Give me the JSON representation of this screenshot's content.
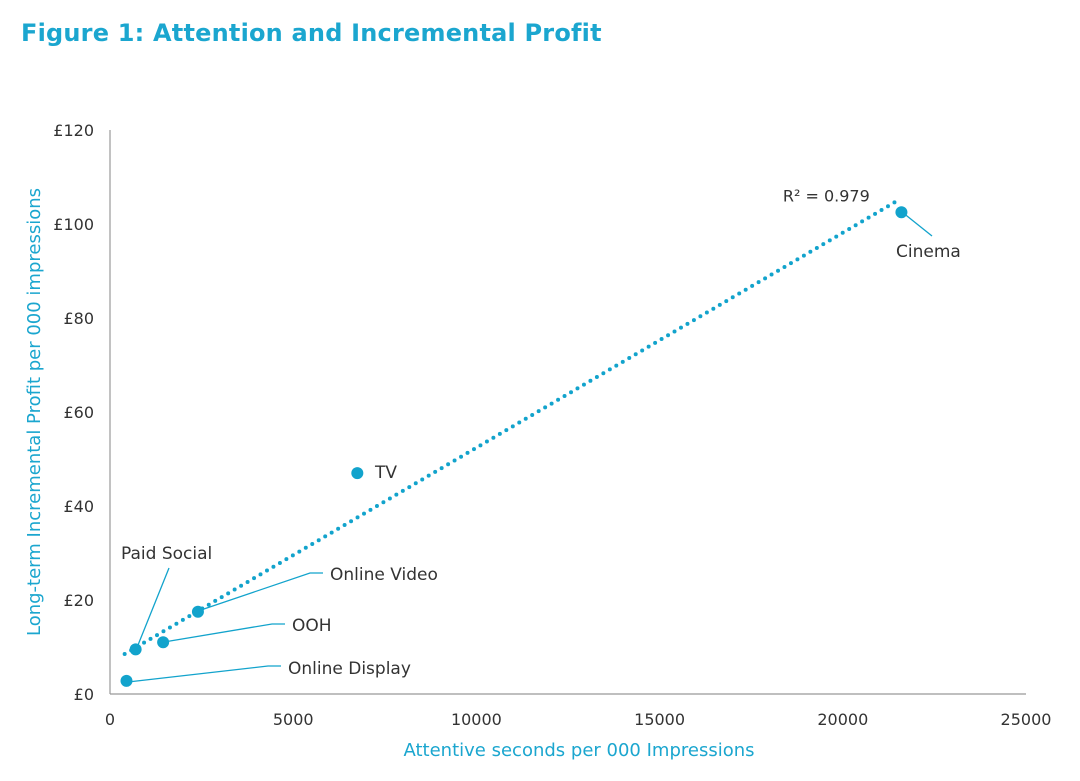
{
  "title": "Figure 1: Attention and Incremental Profit",
  "colors": {
    "title": "#1ba6cf",
    "point": "#12a3cc",
    "axis": "#999999",
    "text": "#333333"
  },
  "chart_data": {
    "type": "scatter",
    "title": "Figure 1: Attention and Incremental Profit",
    "xlabel": "Attentive seconds per 000 Impressions",
    "ylabel": "Long-term Incremental Profit per 000 impressions",
    "xlim": [
      0,
      25000
    ],
    "ylim": [
      0,
      120
    ],
    "x_ticks": [
      0,
      5000,
      10000,
      15000,
      20000,
      25000
    ],
    "x_tick_labels": [
      "0",
      "5000",
      "10000",
      "15000",
      "20000",
      "25000"
    ],
    "y_ticks": [
      0,
      20,
      40,
      60,
      80,
      100,
      120
    ],
    "y_tick_labels": [
      "£0",
      "£20",
      "£40",
      "£60",
      "£80",
      "£100",
      "£120"
    ],
    "grid": false,
    "points": [
      {
        "name": "Online Display",
        "x": 450,
        "y": 2.8
      },
      {
        "name": "Paid Social",
        "x": 700,
        "y": 9.5
      },
      {
        "name": "OOH",
        "x": 1450,
        "y": 11
      },
      {
        "name": "Online Video",
        "x": 2400,
        "y": 17.5
      },
      {
        "name": "TV",
        "x": 6750,
        "y": 47
      },
      {
        "name": "Cinema",
        "x": 21600,
        "y": 102.5
      }
    ],
    "trendline": {
      "style": "dotted",
      "x_start": 400,
      "y_start": 8.5,
      "x_end": 21500,
      "y_end": 105,
      "r_squared_label": "R² = 0.979"
    }
  }
}
